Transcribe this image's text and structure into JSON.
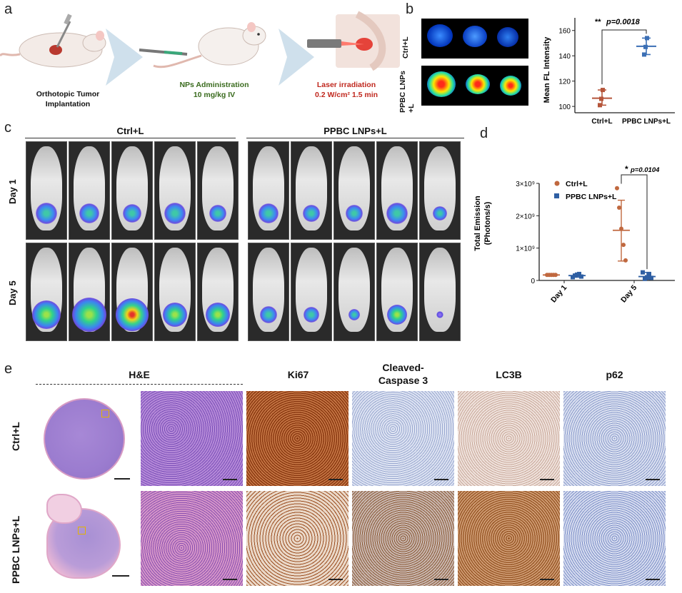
{
  "panel_a": {
    "letter": "a",
    "steps": [
      {
        "title_line1": "Orthotopic Tumor",
        "title_line2": "Implantation",
        "color": "#222222"
      },
      {
        "title_line1": "NPs Administration",
        "title_line2": "10 mg/kg IV",
        "color": "#3a6b1e"
      },
      {
        "title_line1": "Laser irradiation",
        "title_line2": "0.2 W/cm² 1.5 min",
        "color": "#c0281e"
      }
    ]
  },
  "panel_b": {
    "letter": "b",
    "row_labels": [
      "Ctrl+L",
      "PPBC LNPs +L"
    ],
    "chart_data": {
      "type": "scatter",
      "categories": [
        "Ctrl+L",
        "PPBC LNPs+L"
      ],
      "ylabel": "Mean FL Intensity",
      "ylim": [
        95,
        170
      ],
      "yticks": [
        100,
        120,
        140,
        160
      ],
      "series": [
        {
          "category": "Ctrl+L",
          "points": [
            101,
            106,
            113
          ],
          "mean": 106.5,
          "sd_low": 101,
          "sd_high": 113,
          "color": "#b5553a"
        },
        {
          "category": "PPBC LNPs+L",
          "points": [
            141,
            147,
            154
          ],
          "mean": 147.5,
          "sd_low": 141,
          "sd_high": 154,
          "color": "#3b6fb5"
        }
      ],
      "annotation": {
        "stars": "**",
        "text": "p=0.0018"
      }
    }
  },
  "panel_c": {
    "letter": "c",
    "group_labels": [
      "Ctrl+L",
      "PPBC LNPs+L"
    ],
    "row_labels": [
      "Day 1",
      "Day 5"
    ]
  },
  "panel_d": {
    "letter": "d",
    "chart_data": {
      "type": "scatter",
      "categories": [
        "Day 1",
        "Day 5"
      ],
      "ylabel_line1": "Total Emission",
      "ylabel_line2": "(Photons/s)",
      "ylim": [
        0,
        3.0
      ],
      "yticks": [
        {
          "v": 0,
          "label": "0"
        },
        {
          "v": 1,
          "label": "1×10⁹"
        },
        {
          "v": 2,
          "label": "2×10⁹"
        },
        {
          "v": 3,
          "label": "3×10⁹"
        }
      ],
      "series": [
        {
          "name": "Ctrl+L",
          "color": "#c0683f",
          "marker": "circle",
          "data": [
            {
              "category": "Day 1",
              "points": [
                0.17,
                0.17,
                0.17,
                0.17,
                0.17
              ],
              "mean": 0.17,
              "sd_low": 0.16,
              "sd_high": 0.18
            },
            {
              "category": "Day 5",
              "points": [
                2.85,
                2.25,
                1.6,
                1.1,
                0.62
              ],
              "mean": 1.55,
              "sd_low": 0.6,
              "sd_high": 2.48
            }
          ]
        },
        {
          "name": "PPBC LNPs+L",
          "color": "#2f5fa3",
          "marker": "square",
          "data": [
            {
              "category": "Day 1",
              "points": [
                0.1,
                0.15,
                0.18,
                0.2,
                0.12
              ],
              "mean": 0.15,
              "sd_low": 0.1,
              "sd_high": 0.2
            },
            {
              "category": "Day 5",
              "points": [
                0.25,
                0.05,
                0.1,
                0.2,
                0.08
              ],
              "mean": 0.12,
              "sd_low": 0.03,
              "sd_high": 0.25
            }
          ]
        }
      ],
      "annotation": {
        "stars": "*",
        "text": "p=0.0104"
      }
    }
  },
  "panel_e": {
    "letter": "e",
    "column_labels": [
      "H&E",
      "Ki67",
      "Cleaved-",
      "Caspase 3",
      "LC3B",
      "p62"
    ],
    "row_labels": [
      "Ctrl+L",
      "PPBC LNPs+L"
    ]
  }
}
